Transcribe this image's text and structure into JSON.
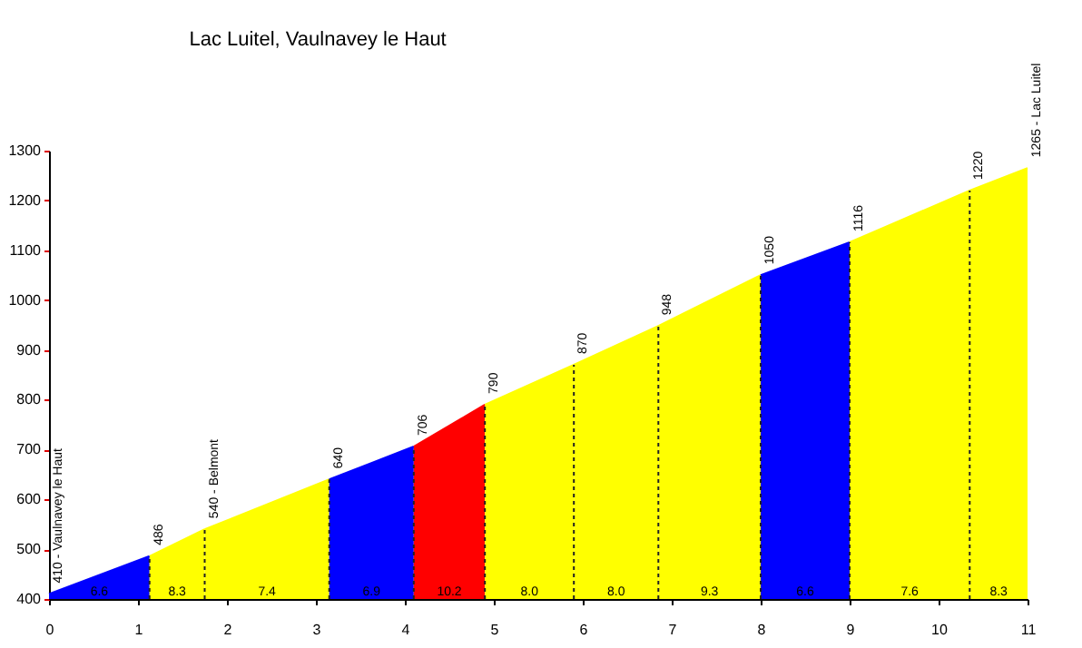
{
  "chart_data": {
    "type": "area",
    "title": "Lac Luitel, Vaulnavey le Haut",
    "series": [
      {
        "color": "#0000ff",
        "x": [
          0,
          1.13
        ],
        "values": [
          410,
          486
        ],
        "value_labels": [
          "410 - Vaulnavey le Haut",
          "486"
        ]
      },
      {
        "color": "#ffff00",
        "x": [
          1.13,
          1.75
        ],
        "values": [
          486,
          540
        ],
        "value_labels": [
          null,
          "540 - Belmont"
        ]
      },
      {
        "color": "#ffff00",
        "x": [
          1.75,
          3.15
        ],
        "values": [
          540,
          640
        ],
        "value_labels": [
          null,
          "640"
        ]
      },
      {
        "color": "#0000ff",
        "x": [
          3.15,
          4.1
        ],
        "values": [
          640,
          706
        ],
        "value_labels": [
          null,
          "706"
        ]
      },
      {
        "color": "#ff0000",
        "x": [
          4.1,
          4.9
        ],
        "values": [
          706,
          790
        ],
        "value_labels": [
          null,
          "790"
        ]
      },
      {
        "color": "#ffff00",
        "x": [
          4.9,
          5.9
        ],
        "values": [
          790,
          870
        ],
        "value_labels": [
          null,
          "870"
        ]
      },
      {
        "color": "#ffff00",
        "x": [
          5.9,
          6.85
        ],
        "values": [
          870,
          948
        ],
        "value_labels": [
          null,
          "948"
        ]
      },
      {
        "color": "#ffff00",
        "x": [
          6.85,
          8.0
        ],
        "values": [
          948,
          1050
        ],
        "value_labels": [
          null,
          "1050"
        ]
      },
      {
        "color": "#0000ff",
        "x": [
          8.0,
          9.0
        ],
        "values": [
          1050,
          1116
        ],
        "value_labels": [
          null,
          "1116"
        ]
      },
      {
        "color": "#ffff00",
        "x": [
          9.0,
          10.35
        ],
        "values": [
          1116,
          1220
        ],
        "value_labels": [
          null,
          "1220"
        ]
      },
      {
        "color": "#ffff00",
        "x": [
          10.35,
          11.0
        ],
        "values": [
          1220,
          1265
        ],
        "value_labels": [
          null,
          "1265 - Lac Luitel"
        ]
      }
    ],
    "annotations": [
      {
        "text": "6.6",
        "x": 0.565,
        "y": 400
      },
      {
        "text": "8.3",
        "x": 1.44,
        "y": 400
      },
      {
        "text": "7.4",
        "x": 2.45,
        "y": 400
      },
      {
        "text": "6.9",
        "x": 3.625,
        "y": 400
      },
      {
        "text": "10.2",
        "x": 4.5,
        "y": 400
      },
      {
        "text": "8.0",
        "x": 5.4,
        "y": 400
      },
      {
        "text": "8.0",
        "x": 6.375,
        "y": 400
      },
      {
        "text": "9.3",
        "x": 7.425,
        "y": 400
      },
      {
        "text": "6.6",
        "x": 8.5,
        "y": 400
      },
      {
        "text": "7.6",
        "x": 9.675,
        "y": 400
      },
      {
        "text": "8.3",
        "x": 10.675,
        "y": 400
      }
    ],
    "xlim": [
      0,
      11
    ],
    "xticks": [
      0,
      1,
      2,
      3,
      4,
      5,
      6,
      7,
      8,
      9,
      10,
      11
    ],
    "ylim": [
      400,
      1300
    ],
    "yticks": [
      400,
      500,
      600,
      700,
      800,
      900,
      1000,
      1100,
      1200,
      1300
    ],
    "legend": false
  }
}
